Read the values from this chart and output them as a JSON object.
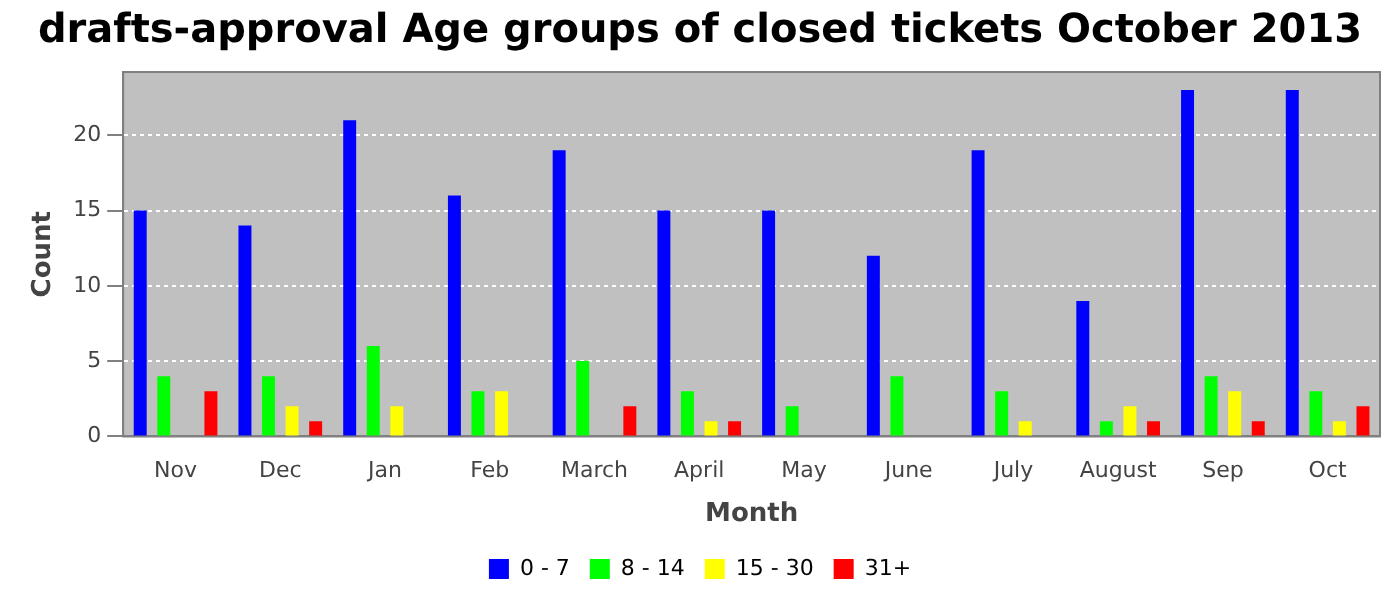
{
  "chart_data": {
    "type": "bar",
    "title": "drafts-approval Age groups of closed tickets October 2013",
    "xlabel": "Month",
    "ylabel": "Count",
    "categories": [
      "Nov",
      "Dec",
      "Jan",
      "Feb",
      "March",
      "April",
      "May",
      "June",
      "July",
      "August",
      "Sep",
      "Oct"
    ],
    "series": [
      {
        "name": "0 - 7",
        "color": "#0000ff",
        "values": [
          15,
          14,
          21,
          16,
          19,
          15,
          15,
          12,
          19,
          9,
          23,
          23
        ]
      },
      {
        "name": "8 - 14",
        "color": "#00ff00",
        "values": [
          4,
          4,
          6,
          3,
          5,
          3,
          2,
          4,
          3,
          1,
          4,
          3
        ]
      },
      {
        "name": "15 - 30",
        "color": "#ffff00",
        "values": [
          0,
          2,
          2,
          3,
          0,
          1,
          0,
          0,
          1,
          2,
          3,
          1
        ]
      },
      {
        "name": "31+",
        "color": "#ff0000",
        "values": [
          3,
          1,
          0,
          0,
          2,
          1,
          0,
          0,
          0,
          1,
          1,
          2
        ]
      }
    ],
    "ylim": [
      0,
      24.2
    ],
    "yticks": [
      0,
      5,
      10,
      15,
      20
    ],
    "grid": "y",
    "legend": "bottom"
  }
}
